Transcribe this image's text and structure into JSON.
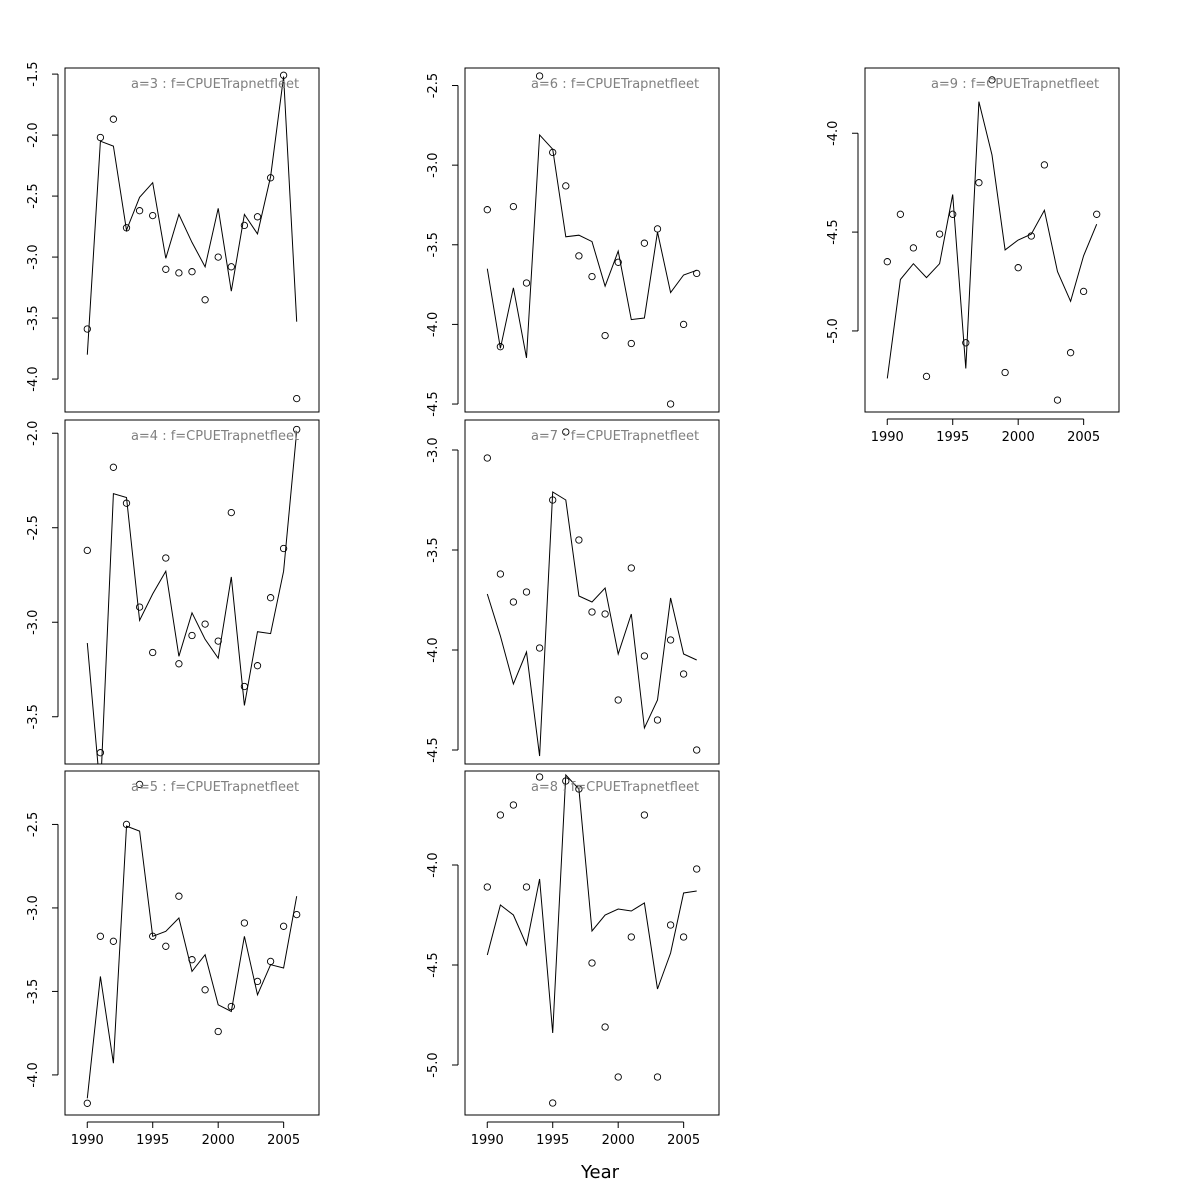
{
  "figure": {
    "xlabel": "Year"
  },
  "chart_data": [
    {
      "type": "line",
      "title": "a=3  :  f=CPUETrapnetfleet",
      "xlim": [
        1988.3,
        2007.7
      ],
      "ylim": [
        -4.27,
        -1.45
      ],
      "xticks": [
        1990,
        1995,
        2000,
        2005
      ],
      "xtick_labels": [
        "1990",
        "1995",
        "2000",
        "2005"
      ],
      "yticks": [
        -4.0,
        -3.5,
        -3.0,
        -2.5,
        -2.0,
        -1.5
      ],
      "ytick_labels": [
        "-4.0",
        "-3.5",
        "-3.0",
        "-2.5",
        "-2.0",
        "-1.5"
      ],
      "series": [
        {
          "kind": "line",
          "x": [
            1990,
            1991,
            1992,
            1993,
            1994,
            1995,
            1996,
            1997,
            1998,
            1999,
            2000,
            2001,
            2002,
            2003,
            2004,
            2005,
            2006
          ],
          "y": [
            -3.8,
            -2.05,
            -2.09,
            -2.78,
            -2.51,
            -2.39,
            -3.01,
            -2.65,
            -2.88,
            -3.08,
            -2.6,
            -3.28,
            -2.65,
            -2.81,
            -2.34,
            -1.52,
            -3.53
          ]
        },
        {
          "kind": "points",
          "x": [
            1990,
            1991,
            1992,
            1993,
            1994,
            1995,
            1996,
            1997,
            1998,
            1999,
            2000,
            2001,
            2002,
            2003,
            2004,
            2005,
            2006
          ],
          "y": [
            -3.59,
            -2.02,
            -1.87,
            -2.76,
            -2.62,
            -2.66,
            -3.1,
            -3.13,
            -3.12,
            -3.35,
            -3.0,
            -3.08,
            -2.74,
            -2.67,
            -2.35,
            -1.51,
            -4.16
          ]
        }
      ]
    },
    {
      "type": "line",
      "title": "a=4  :  f=CPUETrapnetfleet",
      "xlim": [
        1988.3,
        2007.7
      ],
      "ylim": [
        -3.75,
        -1.93
      ],
      "xticks": [
        1990,
        1995,
        2000,
        2005
      ],
      "xtick_labels": [
        "1990",
        "1995",
        "2000",
        "2005"
      ],
      "yticks": [
        -3.5,
        -3.0,
        -2.5,
        -2.0
      ],
      "ytick_labels": [
        "-3.5",
        "-3.0",
        "-2.5",
        "-2.0"
      ],
      "series": [
        {
          "kind": "line",
          "x": [
            1990,
            1991,
            1992,
            1993,
            1994,
            1995,
            1996,
            1997,
            1998,
            1999,
            2000,
            2001,
            2002,
            2003,
            2004,
            2005,
            2006
          ],
          "y": [
            -3.11,
            -3.9,
            -2.32,
            -2.34,
            -2.99,
            -2.85,
            -2.73,
            -3.18,
            -2.95,
            -3.09,
            -3.19,
            -2.76,
            -3.44,
            -3.05,
            -3.06,
            -2.73,
            -1.99
          ]
        },
        {
          "kind": "points",
          "x": [
            1990,
            1991,
            1992,
            1993,
            1994,
            1995,
            1996,
            1997,
            1998,
            1999,
            2000,
            2001,
            2002,
            2003,
            2004,
            2005,
            2006
          ],
          "y": [
            -2.62,
            -3.69,
            -2.18,
            -2.37,
            -2.92,
            -3.16,
            -2.66,
            -3.22,
            -3.07,
            -3.01,
            -3.1,
            -2.42,
            -3.34,
            -3.23,
            -2.87,
            -2.61,
            -1.98
          ]
        }
      ]
    },
    {
      "type": "line",
      "title": "a=5  :  f=CPUETrapnetfleet",
      "xlim": [
        1988.3,
        2007.7
      ],
      "ylim": [
        -4.24,
        -2.18
      ],
      "xticks": [
        1990,
        1995,
        2000,
        2005
      ],
      "xtick_labels": [
        "1990",
        "1995",
        "2000",
        "2005"
      ],
      "yticks": [
        -4.0,
        -3.5,
        -3.0,
        -2.5
      ],
      "ytick_labels": [
        "-4.0",
        "-3.5",
        "-3.0",
        "-2.5"
      ],
      "series": [
        {
          "kind": "line",
          "x": [
            1990,
            1991,
            1992,
            1993,
            1994,
            1995,
            1996,
            1997,
            1998,
            1999,
            2000,
            2001,
            2002,
            2003,
            2004,
            2005,
            2006
          ],
          "y": [
            -4.14,
            -3.41,
            -3.93,
            -2.51,
            -2.54,
            -3.17,
            -3.14,
            -3.06,
            -3.38,
            -3.28,
            -3.58,
            -3.62,
            -3.17,
            -3.52,
            -3.34,
            -3.36,
            -2.93
          ]
        },
        {
          "kind": "points",
          "x": [
            1990,
            1991,
            1992,
            1993,
            1994,
            1995,
            1996,
            1997,
            1998,
            1999,
            2000,
            2001,
            2002,
            2003,
            2004,
            2005,
            2006
          ],
          "y": [
            -4.17,
            -3.17,
            -3.2,
            -2.5,
            -2.26,
            -3.17,
            -3.23,
            -2.93,
            -3.31,
            -3.49,
            -3.74,
            -3.59,
            -3.09,
            -3.44,
            -3.32,
            -3.11,
            -3.04
          ]
        }
      ]
    },
    {
      "type": "line",
      "title": "a=6  :  f=CPUETrapnetfleet",
      "xlim": [
        1988.3,
        2007.7
      ],
      "ylim": [
        -4.55,
        -2.39
      ],
      "xticks": [
        1990,
        1995,
        2000,
        2005
      ],
      "xtick_labels": [
        "1990",
        "1995",
        "2000",
        "2005"
      ],
      "yticks": [
        -4.5,
        -4.0,
        -3.5,
        -3.0,
        -2.5
      ],
      "ytick_labels": [
        "-4.5",
        "-4.0",
        "-3.5",
        "-3.0",
        "-2.5"
      ],
      "series": [
        {
          "kind": "line",
          "x": [
            1990,
            1991,
            1992,
            1993,
            1994,
            1995,
            1996,
            1997,
            1998,
            1999,
            2000,
            2001,
            2002,
            2003,
            2004,
            2005,
            2006
          ],
          "y": [
            -3.65,
            -4.15,
            -3.77,
            -4.21,
            -2.81,
            -2.9,
            -3.45,
            -3.44,
            -3.48,
            -3.76,
            -3.54,
            -3.97,
            -3.96,
            -3.42,
            -3.8,
            -3.69,
            -3.66
          ]
        },
        {
          "kind": "points",
          "x": [
            1990,
            1991,
            1992,
            1993,
            1994,
            1995,
            1996,
            1997,
            1998,
            1999,
            2000,
            2001,
            2002,
            2003,
            2004,
            2005,
            2006
          ],
          "y": [
            -3.28,
            -4.14,
            -3.26,
            -3.74,
            -2.44,
            -2.92,
            -3.13,
            -3.57,
            -3.7,
            -4.07,
            -3.61,
            -4.12,
            -3.49,
            -3.4,
            -4.5,
            -4.0,
            -3.68
          ]
        }
      ]
    },
    {
      "type": "line",
      "title": "a=7  :  f=CPUETrapnetfleet",
      "xlim": [
        1988.3,
        2007.7
      ],
      "ylim": [
        -4.57,
        -2.85
      ],
      "xticks": [
        1990,
        1995,
        2000,
        2005
      ],
      "xtick_labels": [
        "1990",
        "1995",
        "2000",
        "2005"
      ],
      "yticks": [
        -4.5,
        -4.0,
        -3.5,
        -3.0
      ],
      "ytick_labels": [
        "-4.5",
        "-4.0",
        "-3.5",
        "-3.0"
      ],
      "series": [
        {
          "kind": "line",
          "x": [
            1990,
            1991,
            1992,
            1993,
            1994,
            1995,
            1996,
            1997,
            1998,
            1999,
            2000,
            2001,
            2002,
            2003,
            2004,
            2005,
            2006
          ],
          "y": [
            -3.72,
            -3.93,
            -4.17,
            -4.01,
            -4.53,
            -3.21,
            -3.25,
            -3.73,
            -3.76,
            -3.69,
            -4.02,
            -3.82,
            -4.39,
            -4.25,
            -3.74,
            -4.02,
            -4.05
          ]
        },
        {
          "kind": "points",
          "x": [
            1990,
            1991,
            1992,
            1993,
            1994,
            1995,
            1996,
            1997,
            1998,
            1999,
            2000,
            2001,
            2002,
            2003,
            2004,
            2005,
            2006
          ],
          "y": [
            -3.04,
            -3.62,
            -3.76,
            -3.71,
            -3.99,
            -3.25,
            -2.91,
            -3.45,
            -3.81,
            -3.82,
            -4.25,
            -3.59,
            -4.03,
            -4.35,
            -3.95,
            -4.12,
            -4.5
          ]
        }
      ]
    },
    {
      "type": "line",
      "title": "a=8  :  f=CPUETrapnetfleet",
      "xlim": [
        1988.3,
        2007.7
      ],
      "ylim": [
        -5.25,
        -3.53
      ],
      "xticks": [
        1990,
        1995,
        2000,
        2005
      ],
      "xtick_labels": [
        "1990",
        "1995",
        "2000",
        "2005"
      ],
      "yticks": [
        -5.0,
        -4.5,
        -4.0
      ],
      "ytick_labels": [
        "-5.0",
        "-4.5",
        "-4.0"
      ],
      "series": [
        {
          "kind": "line",
          "x": [
            1990,
            1991,
            1992,
            1993,
            1994,
            1995,
            1996,
            1997,
            1998,
            1999,
            2000,
            2001,
            2002,
            2003,
            2004,
            2005,
            2006
          ],
          "y": [
            -4.45,
            -4.2,
            -4.25,
            -4.4,
            -4.07,
            -4.84,
            -3.55,
            -3.62,
            -4.33,
            -4.25,
            -4.22,
            -4.23,
            -4.19,
            -4.62,
            -4.44,
            -4.14,
            -4.13
          ]
        },
        {
          "kind": "points",
          "x": [
            1990,
            1991,
            1992,
            1993,
            1994,
            1995,
            1996,
            1997,
            1998,
            1999,
            2000,
            2001,
            2002,
            2003,
            2004,
            2005,
            2006
          ],
          "y": [
            -4.11,
            -3.75,
            -3.7,
            -4.11,
            -3.56,
            -5.19,
            -3.58,
            -3.62,
            -4.49,
            -4.81,
            -5.06,
            -4.36,
            -3.75,
            -5.06,
            -4.3,
            -4.36,
            -4.02
          ]
        }
      ]
    },
    {
      "type": "line",
      "title": "a=9  :  f=CPUETrapnetfleet",
      "xlim": [
        1988.3,
        2007.7
      ],
      "ylim": [
        -5.41,
        -3.67
      ],
      "xticks": [
        1990,
        1995,
        2000,
        2005
      ],
      "xtick_labels": [
        "1990",
        "1995",
        "2000",
        "2005"
      ],
      "yticks": [
        -5.0,
        -4.5,
        -4.0
      ],
      "ytick_labels": [
        "-5.0",
        "-4.5",
        "-4.0"
      ],
      "series": [
        {
          "kind": "line",
          "x": [
            1990,
            1991,
            1992,
            1993,
            1994,
            1995,
            1996,
            1997,
            1998,
            1999,
            2000,
            2001,
            2002,
            2003,
            2004,
            2005,
            2006
          ],
          "y": [
            -5.24,
            -4.74,
            -4.66,
            -4.73,
            -4.66,
            -4.31,
            -5.19,
            -3.84,
            -4.11,
            -4.59,
            -4.54,
            -4.51,
            -4.39,
            -4.7,
            -4.85,
            -4.62,
            -4.46
          ]
        },
        {
          "kind": "points",
          "x": [
            1990,
            1991,
            1992,
            1993,
            1994,
            1995,
            1996,
            1997,
            1998,
            1999,
            2000,
            2001,
            2002,
            2003,
            2004,
            2005,
            2006
          ],
          "y": [
            -4.65,
            -4.41,
            -4.58,
            -5.23,
            -4.51,
            -4.41,
            -5.06,
            -4.25,
            -3.73,
            -5.21,
            -4.68,
            -4.52,
            -4.16,
            -5.35,
            -5.11,
            -4.8,
            -4.41
          ]
        }
      ]
    }
  ]
}
